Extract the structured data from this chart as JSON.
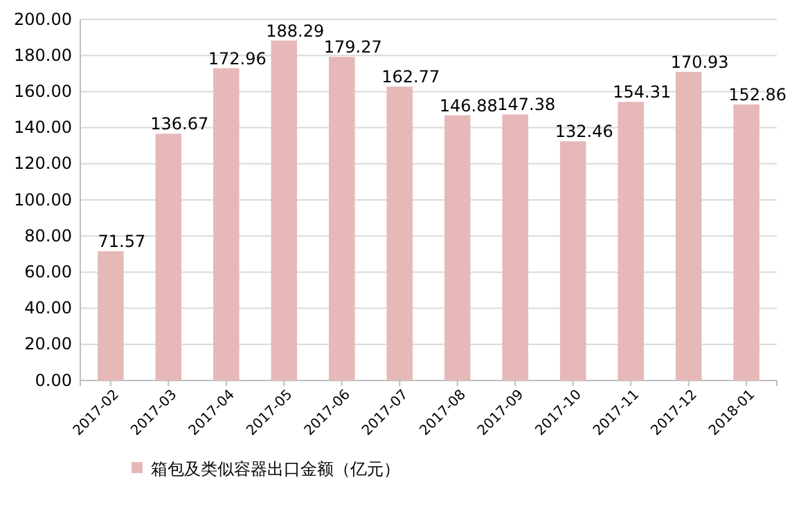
{
  "chart_data": {
    "type": "bar",
    "categories": [
      "2017-02",
      "2017-03",
      "2017-04",
      "2017-05",
      "2017-06",
      "2017-07",
      "2017-08",
      "2017-09",
      "2017-10",
      "2017-11",
      "2017-12",
      "2018-01"
    ],
    "series": [
      {
        "name": "箱包及类似容器出口金额（亿元）",
        "color": "#e6b9b8",
        "values": [
          71.57,
          136.67,
          172.96,
          188.29,
          179.27,
          162.77,
          146.88,
          147.38,
          132.46,
          154.31,
          170.93,
          152.86
        ]
      }
    ],
    "ylim": [
      0,
      200
    ],
    "yticks": [
      {
        "value": 0,
        "label": "0.00"
      },
      {
        "value": 20,
        "label": "20.00"
      },
      {
        "value": 40,
        "label": "40.00"
      },
      {
        "value": 60,
        "label": "60.00"
      },
      {
        "value": 80,
        "label": "80.00"
      },
      {
        "value": 100,
        "label": "100.00"
      },
      {
        "value": 120,
        "label": "120.00"
      },
      {
        "value": 140,
        "label": "140.00"
      },
      {
        "value": 160,
        "label": "160.00"
      },
      {
        "value": 180,
        "label": "180.00"
      },
      {
        "value": 200,
        "label": "200.00"
      }
    ],
    "grid": "y",
    "legend": "bottom",
    "data_labels": true
  }
}
